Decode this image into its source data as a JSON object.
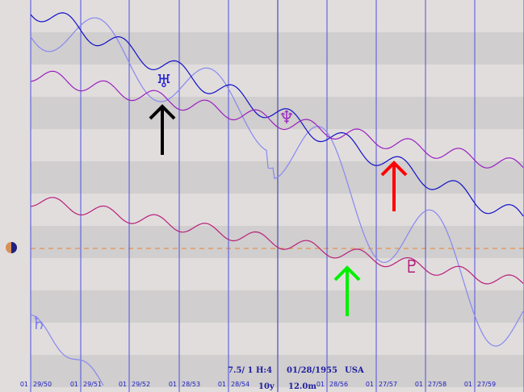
{
  "planets": {
    "uranus": "♅",
    "neptune": "♆",
    "pluto": "♇",
    "saturn": "♄"
  },
  "date_labels": [
    {
      "day": "01",
      "date": "29/50"
    },
    {
      "day": "01",
      "date": "29/51"
    },
    {
      "day": "01",
      "date": "29/52"
    },
    {
      "day": "01",
      "date": "28/53"
    },
    {
      "day": "01",
      "date": "28/54"
    },
    {
      "day": "01",
      "date": "28/56"
    },
    {
      "day": "01",
      "date": "27/57"
    },
    {
      "day": "01",
      "date": "27/58"
    },
    {
      "day": "01",
      "date": "27/59"
    }
  ],
  "info": {
    "orb": "7.5/ 1 H:4",
    "span": "10y",
    "birth_date": "01/28/1955",
    "location": "USA",
    "step": "12.0m"
  }
}
